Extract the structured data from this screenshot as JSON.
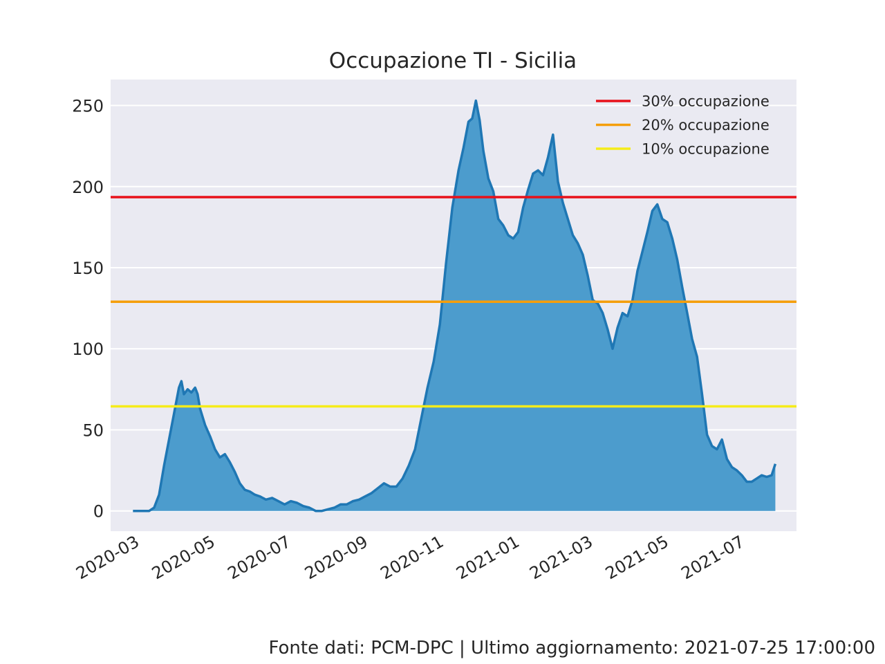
{
  "footer": "Fonte dati: PCM-DPC | Ultimo aggiornamento: 2021-07-25 17:00:00",
  "chart_data": {
    "type": "area",
    "title": "Occupazione TI - Sicilia",
    "xlabel": "",
    "ylabel": "",
    "xlim": [
      "2020-02-06",
      "2021-08-11"
    ],
    "ylim": [
      -12.5,
      266
    ],
    "x_ticks": [
      "2020-03",
      "2020-05",
      "2020-07",
      "2020-09",
      "2020-11",
      "2021-01",
      "2021-03",
      "2021-05",
      "2021-07"
    ],
    "y_ticks": [
      0,
      50,
      100,
      150,
      200,
      250
    ],
    "grid": true,
    "legend_position": "top-right",
    "background_color": "#eaeaf2",
    "series": [
      {
        "kind": "area",
        "color": "#1f77b4",
        "fill_color": "#4c9ccd",
        "x": [
          "2020-02-24",
          "2020-03-01",
          "2020-03-08",
          "2020-03-12",
          "2020-03-16",
          "2020-03-20",
          "2020-03-24",
          "2020-03-28",
          "2020-04-01",
          "2020-04-03",
          "2020-04-05",
          "2020-04-08",
          "2020-04-11",
          "2020-04-14",
          "2020-04-16",
          "2020-04-18",
          "2020-04-22",
          "2020-04-26",
          "2020-04-30",
          "2020-05-04",
          "2020-05-08",
          "2020-05-12",
          "2020-05-16",
          "2020-05-20",
          "2020-05-24",
          "2020-05-28",
          "2020-06-01",
          "2020-06-05",
          "2020-06-10",
          "2020-06-15",
          "2020-06-20",
          "2020-06-25",
          "2020-06-30",
          "2020-07-05",
          "2020-07-10",
          "2020-07-15",
          "2020-07-20",
          "2020-07-25",
          "2020-07-30",
          "2020-08-04",
          "2020-08-09",
          "2020-08-14",
          "2020-08-19",
          "2020-08-24",
          "2020-08-29",
          "2020-09-03",
          "2020-09-08",
          "2020-09-13",
          "2020-09-18",
          "2020-09-23",
          "2020-09-28",
          "2020-10-03",
          "2020-10-08",
          "2020-10-13",
          "2020-10-18",
          "2020-10-23",
          "2020-10-28",
          "2020-11-02",
          "2020-11-07",
          "2020-11-12",
          "2020-11-16",
          "2020-11-20",
          "2020-11-23",
          "2020-11-26",
          "2020-11-29",
          "2020-12-02",
          "2020-12-06",
          "2020-12-10",
          "2020-12-14",
          "2020-12-18",
          "2020-12-22",
          "2020-12-26",
          "2020-12-30",
          "2021-01-03",
          "2021-01-07",
          "2021-01-11",
          "2021-01-15",
          "2021-01-19",
          "2021-01-23",
          "2021-01-27",
          "2021-01-31",
          "2021-02-04",
          "2021-02-08",
          "2021-02-12",
          "2021-02-16",
          "2021-02-20",
          "2021-02-24",
          "2021-02-28",
          "2021-03-04",
          "2021-03-08",
          "2021-03-12",
          "2021-03-16",
          "2021-03-20",
          "2021-03-24",
          "2021-03-28",
          "2021-04-01",
          "2021-04-05",
          "2021-04-09",
          "2021-04-13",
          "2021-04-17",
          "2021-04-21",
          "2021-04-25",
          "2021-04-29",
          "2021-05-03",
          "2021-05-07",
          "2021-05-11",
          "2021-05-15",
          "2021-05-19",
          "2021-05-23",
          "2021-05-27",
          "2021-05-31",
          "2021-06-04",
          "2021-06-08",
          "2021-06-12",
          "2021-06-16",
          "2021-06-20",
          "2021-06-24",
          "2021-06-28",
          "2021-07-02",
          "2021-07-06",
          "2021-07-10",
          "2021-07-14",
          "2021-07-18",
          "2021-07-22",
          "2021-07-25"
        ],
        "y": [
          0,
          0,
          0,
          2,
          10,
          28,
          44,
          60,
          76,
          80,
          72,
          75,
          73,
          76,
          72,
          63,
          53,
          46,
          38,
          33,
          35,
          30,
          24,
          17,
          13,
          12,
          10,
          9,
          7,
          8,
          6,
          4,
          6,
          5,
          3,
          2,
          0,
          0,
          1,
          2,
          4,
          4,
          6,
          7,
          9,
          11,
          14,
          17,
          15,
          15,
          20,
          28,
          38,
          57,
          76,
          92,
          115,
          153,
          187,
          210,
          224,
          240,
          242,
          253,
          241,
          222,
          205,
          197,
          180,
          176,
          170,
          168,
          172,
          187,
          198,
          208,
          210,
          207,
          218,
          232,
          203,
          190,
          180,
          170,
          165,
          158,
          145,
          130,
          128,
          122,
          112,
          100,
          113,
          122,
          120,
          130,
          148,
          160,
          172,
          185,
          189,
          180,
          178,
          168,
          155,
          138,
          122,
          106,
          95,
          72,
          47,
          40,
          38,
          44,
          32,
          27,
          25,
          22,
          18,
          18,
          20,
          22,
          21,
          22,
          29
        ]
      },
      {
        "kind": "hline",
        "name": "30% occupazione",
        "y": 193.5,
        "color": "#e8111a"
      },
      {
        "kind": "hline",
        "name": "20% occupazione",
        "y": 129,
        "color": "#f59e0b"
      },
      {
        "kind": "hline",
        "name": "10% occupazione",
        "y": 64.5,
        "color": "#f5ec1a"
      }
    ]
  }
}
